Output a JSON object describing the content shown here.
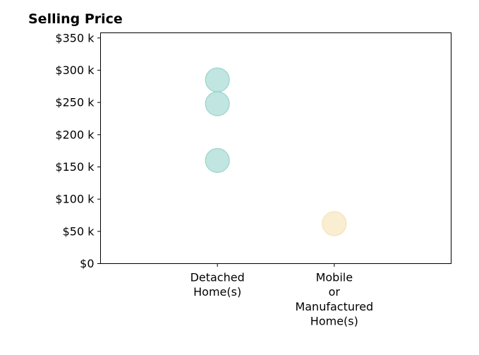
{
  "chart_data": {
    "type": "scatter",
    "title": "Selling Price",
    "xlabel": "",
    "ylabel": "",
    "categories": [
      [
        "Detached",
        "Home(s)"
      ],
      [
        "Mobile",
        "or",
        "Manufactured",
        "Home(s)"
      ]
    ],
    "yticks": [
      {
        "value": 0,
        "label": "$0"
      },
      {
        "value": 50000,
        "label": "$50 k"
      },
      {
        "value": 100000,
        "label": "$100 k"
      },
      {
        "value": 150000,
        "label": "$150 k"
      },
      {
        "value": 200000,
        "label": "$200 k"
      },
      {
        "value": 250000,
        "label": "$250 k"
      },
      {
        "value": 300000,
        "label": "$300 k"
      },
      {
        "value": 350000,
        "label": "$350 k"
      }
    ],
    "ylim": [
      0,
      358000
    ],
    "xlim": [
      -1,
      2
    ],
    "grid": false,
    "points": [
      {
        "category": 0,
        "y": 285000,
        "color": "#8ecfc6"
      },
      {
        "category": 0,
        "y": 248000,
        "color": "#8ecfc6"
      },
      {
        "category": 0,
        "y": 160000,
        "color": "#8ecfc6"
      },
      {
        "category": 1,
        "y": 62000,
        "color": "#f4dfad"
      }
    ]
  }
}
